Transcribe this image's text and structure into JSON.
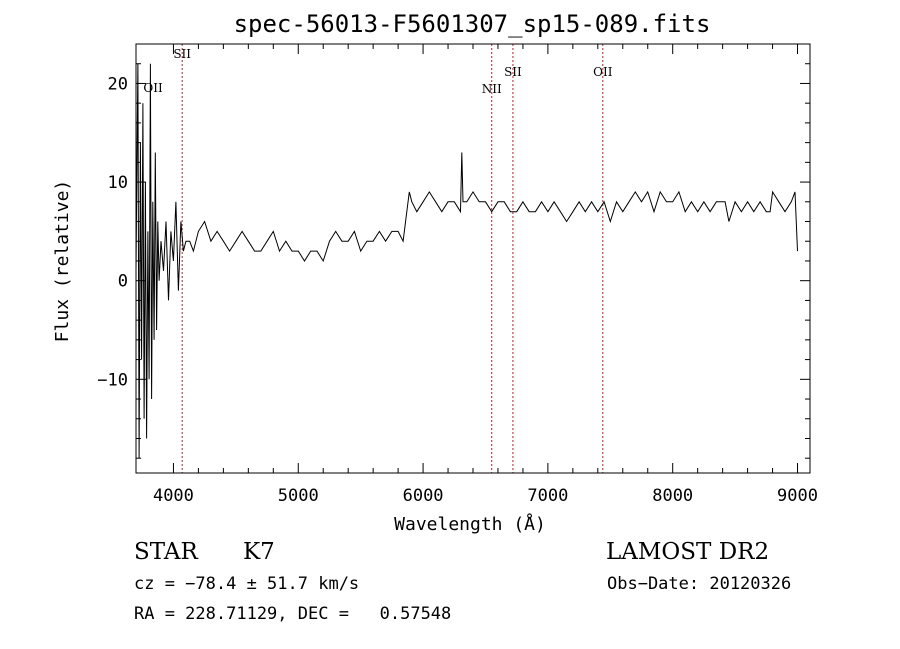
{
  "chart_data": {
    "type": "line",
    "title": "spec-56013-F5601307_sp15-089.fits",
    "xlabel": "Wavelength (Å)",
    "ylabel": "Flux (relative)",
    "xlim": [
      3700,
      9100
    ],
    "ylim": [
      -19.5,
      24
    ],
    "x_ticks": [
      4000,
      5000,
      6000,
      7000,
      8000,
      9000
    ],
    "y_ticks": [
      -10,
      0,
      10,
      20
    ],
    "grid": false,
    "line_color": "#000000",
    "marker_color": "#b22222",
    "series": [
      {
        "x": [
          3700,
          3715,
          3725,
          3735,
          3745,
          3755,
          3765,
          3775,
          3785,
          3795,
          3805,
          3815,
          3825,
          3835,
          3845,
          3855,
          3865,
          3875,
          3885,
          3900,
          3920,
          3940,
          3960,
          3980,
          4000,
          4020,
          4040,
          4060,
          4080,
          4100,
          4130,
          4160,
          4200,
          4250,
          4300,
          4350,
          4400,
          4450,
          4500,
          4550,
          4600,
          4650,
          4700,
          4750,
          4800,
          4850,
          4900,
          4950,
          5000,
          5050,
          5100,
          5150,
          5200,
          5250,
          5300,
          5350,
          5400,
          5450,
          5500,
          5550,
          5600,
          5650,
          5700,
          5750,
          5800,
          5840,
          5870,
          5890,
          5910,
          5950,
          6000,
          6050,
          6100,
          6150,
          6200,
          6250,
          6300,
          6310,
          6320,
          6350,
          6400,
          6450,
          6500,
          6550,
          6600,
          6650,
          6700,
          6750,
          6800,
          6850,
          6900,
          6950,
          7000,
          7050,
          7100,
          7150,
          7200,
          7250,
          7300,
          7350,
          7400,
          7450,
          7500,
          7550,
          7600,
          7650,
          7700,
          7750,
          7800,
          7850,
          7900,
          7950,
          8000,
          8050,
          8100,
          8150,
          8200,
          8250,
          8300,
          8350,
          8400,
          8420,
          8450,
          8500,
          8550,
          8600,
          8650,
          8700,
          8750,
          8780,
          8800,
          8850,
          8900,
          8950,
          8980,
          9000
        ],
        "y": [
          1,
          22,
          -18,
          14,
          -8,
          18,
          -14,
          10,
          -16,
          5,
          -10,
          22,
          -12,
          8,
          -6,
          13,
          -5,
          6,
          0,
          4,
          1,
          6,
          -2,
          5,
          2,
          8,
          -1,
          6,
          3,
          4,
          4,
          3,
          5,
          6,
          4,
          5,
          4,
          3,
          4,
          5,
          4,
          3,
          3,
          4,
          5,
          3,
          4,
          3,
          3,
          2,
          3,
          3,
          2,
          4,
          5,
          4,
          4,
          5,
          3,
          4,
          4,
          5,
          4,
          5,
          5,
          4,
          7,
          9,
          8,
          7,
          8,
          9,
          8,
          7,
          8,
          8,
          7,
          13,
          8,
          8,
          9,
          8,
          8,
          7,
          8,
          8,
          7,
          7,
          8,
          7,
          7,
          8,
          7,
          8,
          7,
          6,
          7,
          8,
          7,
          8,
          7,
          8,
          6,
          8,
          7,
          8,
          9,
          8,
          9,
          7,
          9,
          8,
          8,
          9,
          7,
          8,
          7,
          8,
          7,
          8,
          8,
          8,
          6,
          8,
          7,
          8,
          7,
          8,
          7,
          7,
          9,
          8,
          7,
          8,
          9,
          3
        ]
      }
    ],
    "line_markers": [
      {
        "label": "SII",
        "x": 4070
      },
      {
        "label": "NII",
        "x": 6550
      },
      {
        "label": "SII",
        "x": 6720
      },
      {
        "label": "OII",
        "x": 7440
      },
      {
        "label": "OII",
        "x": 3727
      }
    ]
  },
  "info": {
    "object_type": "STAR",
    "subclass": "K7",
    "survey": "LAMOST DR2",
    "cz": "cz = −78.4 ± 51.7 km/s",
    "obs_date": "Obs−Date: 20120326",
    "coords": "RA = 228.71129, DEC =   0.57548"
  }
}
